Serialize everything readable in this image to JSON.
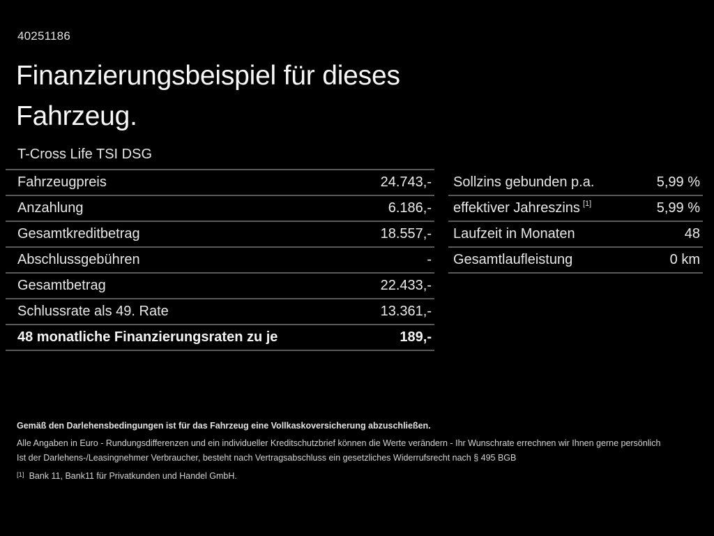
{
  "page": {
    "id_number": "40251186",
    "title": "Finanzierungsbeispiel für dieses Fahrzeug.",
    "vehicle_model": "T-Cross Life TSI DSG"
  },
  "left_table": {
    "rows": [
      {
        "label": "Fahrzeugpreis",
        "value": "24.743,-"
      },
      {
        "label": "Anzahlung",
        "value": "6.186,-"
      },
      {
        "label": "Gesamtkreditbetrag",
        "value": "18.557,-"
      },
      {
        "label": "Abschlussgebühren",
        "value": "-"
      },
      {
        "label": "Gesamtbetrag",
        "value": "22.433,-"
      },
      {
        "label": "Schlussrate als 49. Rate",
        "value": "13.361,-"
      },
      {
        "label": "48 monatliche Finanzierungsraten zu je",
        "value": "189,-"
      }
    ]
  },
  "right_table": {
    "rows": [
      {
        "label": "Sollzins gebunden p.a.",
        "value": "5,99 %"
      },
      {
        "label": "effektiver Jahreszins",
        "label_sup": "[1]",
        "value": "5,99 %"
      },
      {
        "label": "Laufzeit in Monaten",
        "value": "48"
      },
      {
        "label": "Gesamtlaufleistung",
        "value": "0 km"
      }
    ]
  },
  "disclaimer": {
    "insurance_note": "Gemäß den Darlehensbedingungen ist für das Fahrzeug eine Vollkaskoversicherung abzuschließen.",
    "info_line": "Alle Angaben in Euro - Rundungsdifferenzen und ein individueller Kreditschutzbrief können die Werte verändern - Ihr Wunschrate errechnen wir Ihnen gerne persönlich",
    "withdrawal_line": "Ist der Darlehens-/Leasingnehmer Verbraucher, besteht nach Vertragsabschluss ein gesetzliches Widerrufsrecht nach § 495 BGB",
    "footnote_marker": "[1]",
    "footnote_text": "Bank 11, Bank11 für Privatkunden und Handel GmbH."
  },
  "colors": {
    "background": "#000000",
    "text": "#e8e8e8",
    "heading": "#f8f8f8",
    "divider": "#5a5a5a",
    "fine_print": "#d8d8d8"
  }
}
